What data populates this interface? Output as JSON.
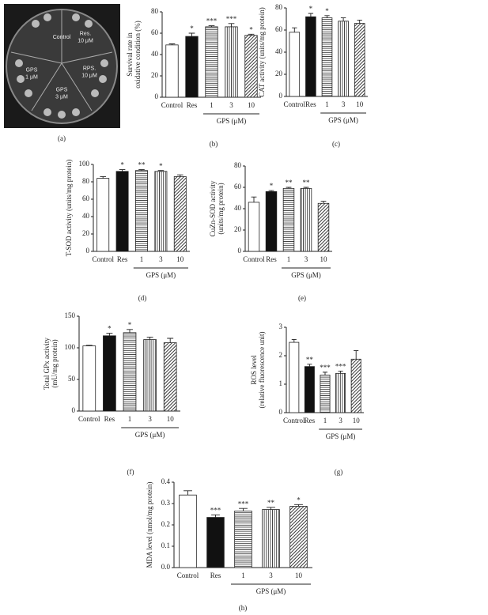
{
  "image_panel": "(a)",
  "image_labels": [
    [
      "Control"
    ],
    [
      "Res.",
      "10 μM"
    ],
    [
      "GPS",
      "1 μM"
    ],
    [
      "RPS.",
      "10 μM"
    ],
    [
      "GPS",
      "3 μM"
    ]
  ],
  "chart_data": [
    {
      "type": "bar",
      "panel": "(b)",
      "ylabel": [
        "Survival rate in",
        "oxidative condition (%)"
      ],
      "categories": [
        "Control",
        "Res",
        "1",
        "3",
        "10"
      ],
      "group_label": "GPS (μM)",
      "values": [
        49,
        57,
        66,
        66,
        58
      ],
      "errors": [
        1,
        3,
        1,
        3,
        1
      ],
      "annotations": [
        null,
        "*",
        "***",
        "***",
        "*"
      ],
      "ylim": [
        0,
        80
      ],
      "yticks": [
        0,
        20,
        40,
        60,
        80
      ]
    },
    {
      "type": "bar",
      "panel": "(c)",
      "ylabel": [
        "CAT activity (units/mg protein)"
      ],
      "categories": [
        "Control",
        "Res",
        "1",
        "3",
        "10"
      ],
      "group_label": "GPS (μM)",
      "values": [
        58,
        72,
        71,
        68,
        66
      ],
      "errors": [
        4,
        3,
        2,
        3,
        3
      ],
      "annotations": [
        null,
        "*",
        "*",
        null,
        null
      ],
      "ylim": [
        0,
        80
      ],
      "yticks": [
        0,
        20,
        40,
        60,
        80
      ]
    },
    {
      "type": "bar",
      "panel": "(d)",
      "ylabel": [
        "T-SOD activity (units/mg protein)"
      ],
      "categories": [
        "Control",
        "Res",
        "1",
        "3",
        "10"
      ],
      "group_label": "GPS (μM)",
      "values": [
        84,
        92,
        93,
        92,
        86
      ],
      "errors": [
        2,
        2,
        1,
        1,
        2
      ],
      "annotations": [
        null,
        "*",
        "**",
        "*",
        null
      ],
      "ylim": [
        0,
        100
      ],
      "yticks": [
        0,
        20,
        40,
        60,
        80,
        100
      ]
    },
    {
      "type": "bar",
      "panel": "(e)",
      "ylabel": [
        "CuZn-SOD activity",
        "(units/mg protein)"
      ],
      "categories": [
        "Control",
        "Res",
        "1",
        "3",
        "10"
      ],
      "group_label": "GPS (μM)",
      "values": [
        46,
        56,
        59,
        59,
        45
      ],
      "errors": [
        5,
        1,
        1,
        1,
        2
      ],
      "annotations": [
        null,
        "*",
        "**",
        "**",
        null
      ],
      "ylim": [
        0,
        80
      ],
      "yticks": [
        0,
        20,
        40,
        60,
        80
      ]
    },
    {
      "type": "bar",
      "panel": "(f)",
      "ylabel": [
        "Total GPx activity",
        "(mU/mg protein)"
      ],
      "categories": [
        "Control",
        "Res",
        "1",
        "3",
        "10"
      ],
      "group_label": "GPS (μM)",
      "values": [
        103,
        119,
        124,
        113,
        108
      ],
      "errors": [
        1,
        4,
        5,
        4,
        7
      ],
      "annotations": [
        null,
        "*",
        "*",
        null,
        null
      ],
      "ylim": [
        0,
        150
      ],
      "yticks": [
        0,
        50,
        100,
        150
      ]
    },
    {
      "type": "bar",
      "panel": "(g)",
      "ylabel": [
        "ROS level",
        "(relative fluorescence unit)"
      ],
      "categories": [
        "Control",
        "Res",
        "1",
        "3",
        "10"
      ],
      "group_label": "GPS (μM)",
      "values": [
        2.47,
        1.62,
        1.32,
        1.38,
        1.88
      ],
      "errors": [
        0.1,
        0.08,
        0.1,
        0.08,
        0.3
      ],
      "annotations": [
        null,
        "**",
        "***",
        "***",
        null
      ],
      "ylim": [
        0,
        3
      ],
      "yticks": [
        0,
        1,
        2,
        3
      ]
    },
    {
      "type": "bar",
      "panel": "(h)",
      "ylabel": [
        "MDA level (nmol/mg protein)"
      ],
      "categories": [
        "Control",
        "Res",
        "1",
        "3",
        "10"
      ],
      "group_label": "GPS (μM)",
      "values": [
        0.34,
        0.235,
        0.265,
        0.272,
        0.287
      ],
      "errors": [
        0.02,
        0.012,
        0.012,
        0.01,
        0.008
      ],
      "annotations": [
        null,
        "***",
        "***",
        "**",
        "*"
      ],
      "ylim": [
        0,
        0.4
      ],
      "yticks": [
        {
          "value": 0,
          "label": "0.0"
        },
        0.1,
        0.2,
        0.3,
        0.4
      ]
    }
  ]
}
